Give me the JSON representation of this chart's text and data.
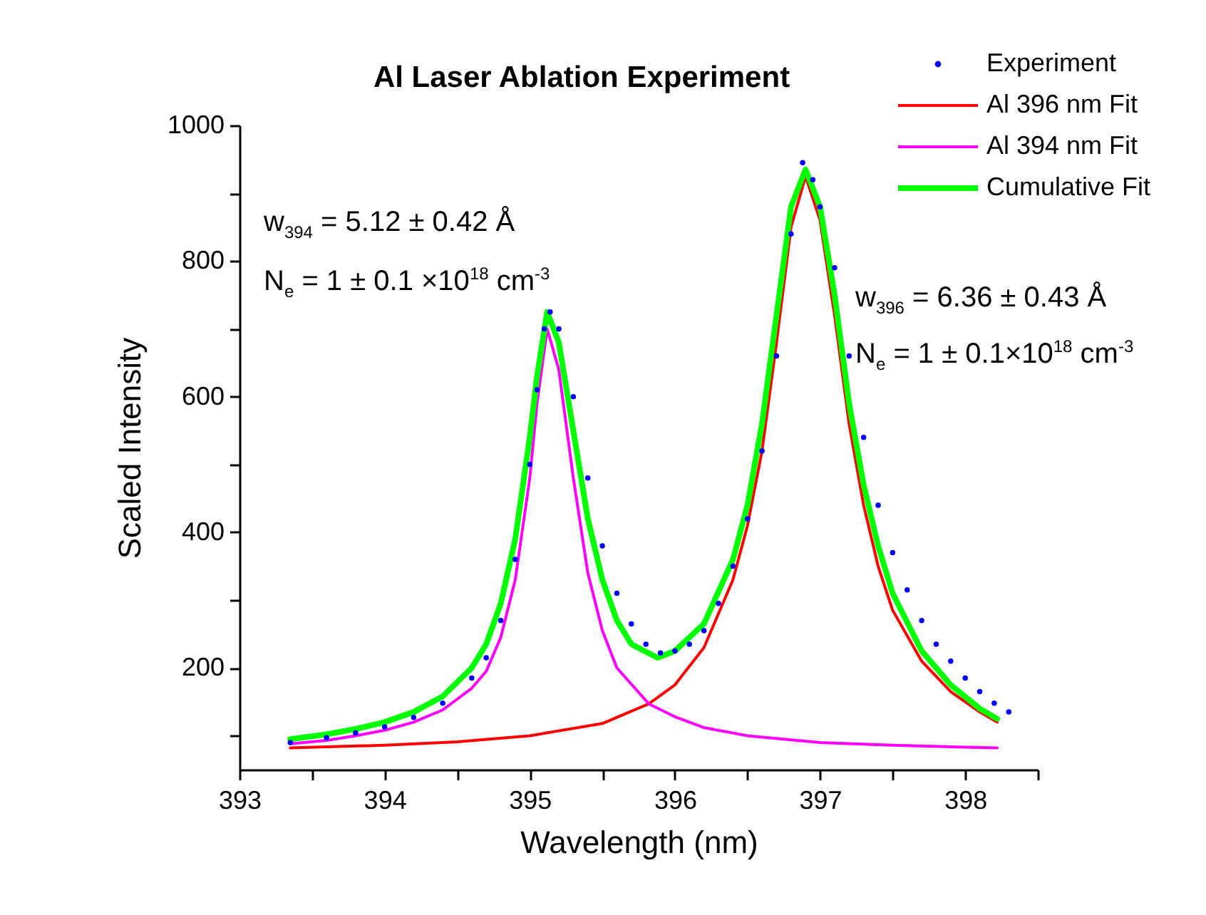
{
  "chart_data": {
    "type": "line",
    "title": "Al Laser Ablation Experiment",
    "xlabel": "Wavelength (nm)",
    "ylabel": "Scaled Intensity",
    "xlim": [
      393,
      398.5
    ],
    "xticks": [
      393,
      {
        "value": 393.5,
        "label": null
      },
      394,
      {
        "value": 394.5,
        "label": null
      },
      395,
      {
        "value": 395.5,
        "label": null
      },
      396,
      {
        "value": 396.5,
        "label": null
      },
      397,
      {
        "value": 397.5,
        "label": null
      },
      398,
      {
        "value": 398.5,
        "label": null
      }
    ],
    "ylim": [
      50,
      1000
    ],
    "yticks": [
      {
        "value": 100,
        "label": null
      },
      200,
      {
        "value": 300,
        "label": null
      },
      400,
      {
        "value": 500,
        "label": null
      },
      600,
      {
        "value": 700,
        "label": null
      },
      800,
      {
        "value": 900,
        "label": null
      },
      1000
    ],
    "legend": "top right",
    "annotations": [
      "w$_{394}$ = 5.12 ± 0.42 Å",
      "N$_{e}$ = 1 ± 0.1 ×10$^{18}$ cm$^{-3}$",
      "w$_{396}$ = 6.36 ± 0.43 Å",
      "N$_{e}$ = 1 ± 0.1×10$^{18}$ cm$^{-3}$"
    ],
    "series": [
      {
        "name": "Experiment",
        "type": "scatter",
        "marker": "circle",
        "color": "#0000ff",
        "x": [
          393.35,
          393.6,
          393.8,
          394.0,
          394.2,
          394.4,
          394.6,
          394.7,
          394.8,
          394.9,
          395.0,
          395.05,
          395.1,
          395.14,
          395.2,
          395.3,
          395.4,
          395.5,
          395.6,
          395.7,
          395.8,
          395.9,
          396.0,
          396.1,
          396.2,
          396.3,
          396.4,
          396.5,
          396.6,
          396.7,
          396.8,
          396.88,
          396.95,
          397.0,
          397.1,
          397.2,
          397.3,
          397.4,
          397.5,
          397.6,
          397.7,
          397.8,
          397.9,
          398.0,
          398.1,
          398.2,
          398.3
        ],
        "values": [
          90,
          97,
          104,
          113,
          127,
          148,
          185,
          215,
          270,
          360,
          500,
          610,
          700,
          725,
          700,
          600,
          480,
          380,
          310,
          265,
          235,
          222,
          225,
          235,
          255,
          295,
          350,
          420,
          520,
          660,
          840,
          945,
          920,
          880,
          790,
          660,
          540,
          440,
          370,
          315,
          270,
          235,
          210,
          185,
          165,
          148,
          135
        ]
      },
      {
        "name": "Al 396 nm Fit",
        "color": "#ff0000",
        "x": [
          393.35,
          394.0,
          394.5,
          395.0,
          395.5,
          395.82,
          396.0,
          396.2,
          396.4,
          396.5,
          396.6,
          396.7,
          396.8,
          396.9,
          397.0,
          397.1,
          397.2,
          397.3,
          397.4,
          397.5,
          397.7,
          397.9,
          398.1,
          398.22
        ],
        "values": [
          82,
          86,
          91,
          100,
          118,
          147,
          175,
          230,
          330,
          410,
          520,
          680,
          850,
          925,
          860,
          720,
          560,
          440,
          350,
          285,
          210,
          165,
          135,
          120
        ]
      },
      {
        "name": "Al 394 nm Fit",
        "color": "#ff00ff",
        "x": [
          393.35,
          393.6,
          393.8,
          394.0,
          394.2,
          394.4,
          394.6,
          394.7,
          394.8,
          394.9,
          395.0,
          395.05,
          395.12,
          395.2,
          395.3,
          395.4,
          395.5,
          395.6,
          395.82,
          396.0,
          396.2,
          396.5,
          397.0,
          397.5,
          398.0,
          398.22
        ],
        "values": [
          88,
          93,
          100,
          108,
          120,
          138,
          170,
          195,
          245,
          330,
          480,
          590,
          700,
          640,
          480,
          340,
          255,
          200,
          147,
          128,
          112,
          100,
          90,
          86,
          83,
          82
        ]
      },
      {
        "name": "Cumulative Fit",
        "color": "#00ff00",
        "x": [
          393.35,
          393.6,
          393.8,
          394.0,
          394.2,
          394.4,
          394.6,
          394.7,
          394.8,
          394.9,
          395.0,
          395.05,
          395.12,
          395.2,
          395.3,
          395.4,
          395.5,
          395.6,
          395.7,
          395.88,
          396.0,
          396.2,
          396.4,
          396.5,
          396.6,
          396.7,
          396.8,
          396.9,
          397.0,
          397.1,
          397.2,
          397.3,
          397.4,
          397.5,
          397.7,
          397.9,
          398.1,
          398.22
        ],
        "values": [
          95,
          102,
          110,
          120,
          135,
          158,
          200,
          235,
          295,
          390,
          540,
          630,
          725,
          680,
          550,
          420,
          330,
          270,
          235,
          215,
          225,
          265,
          360,
          440,
          560,
          720,
          880,
          935,
          880,
          750,
          590,
          470,
          380,
          310,
          225,
          175,
          140,
          125
        ]
      }
    ]
  }
}
